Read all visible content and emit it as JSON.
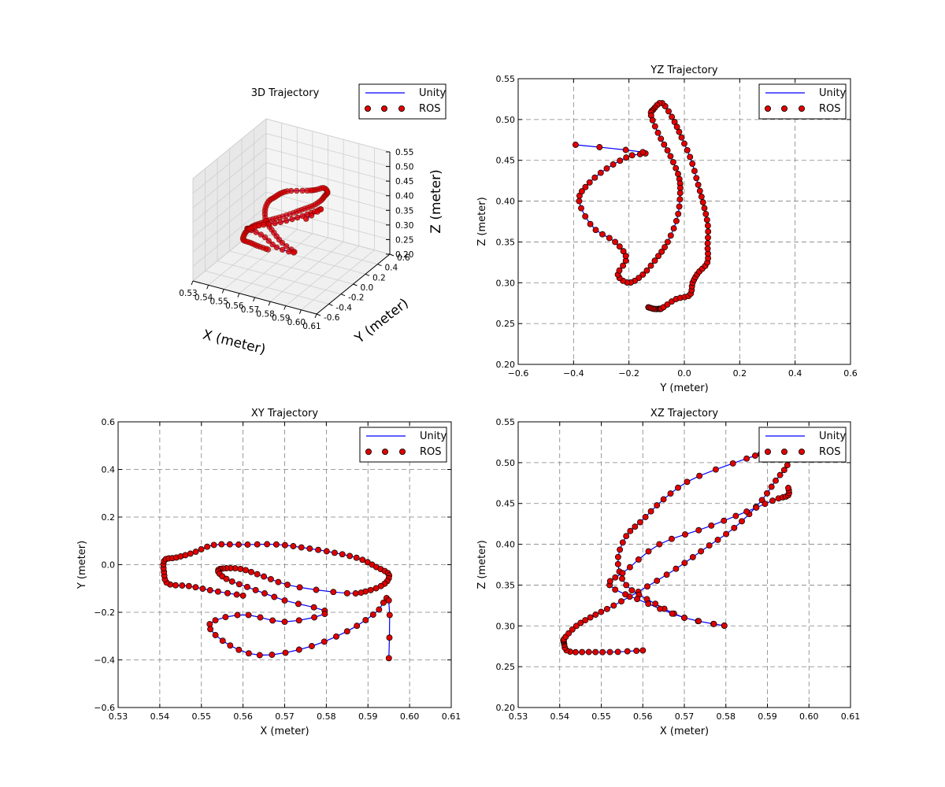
{
  "figure": {
    "background": "#ffffff"
  },
  "style": {
    "unity_color": "#0000ff",
    "ros_fill": "#e00000",
    "ros_edge": "#000000",
    "grid_color": "#808080",
    "pane_color": "#f2f2f2"
  },
  "legend": {
    "unity_label": "Unity",
    "ros_label": "ROS",
    "placement": "top-right"
  },
  "chart_data": [
    {
      "id": "traj3d",
      "type": "line",
      "projection": "3d",
      "title": "3D Trajectory",
      "xlabel": "X (meter)",
      "ylabel": "Y (meter)",
      "zlabel": "Z (meter)",
      "xlim": [
        0.53,
        0.61
      ],
      "ylim": [
        -0.6,
        0.6
      ],
      "zlim": [
        0.2,
        0.55
      ],
      "xticks": [
        "0.53",
        "0.54",
        "0.55",
        "0.56",
        "0.57",
        "0.58",
        "0.59",
        "0.60",
        "0.61"
      ],
      "yticks": [
        "-0.6",
        "-0.4",
        "-0.2",
        "0.0",
        "0.2",
        "0.4",
        "0.6"
      ],
      "zticks": [
        "0.20",
        "0.25",
        "0.30",
        "0.35",
        "0.40",
        "0.45",
        "0.50",
        "0.55"
      ],
      "grid": true,
      "legend": "top-right",
      "series": [
        {
          "name": "Unity",
          "style": "line"
        },
        {
          "name": "ROS",
          "style": "markers"
        }
      ]
    },
    {
      "id": "yz",
      "type": "line",
      "title": "YZ Trajectory",
      "xlabel": "Y (meter)",
      "ylabel": "Z (meter)",
      "xlim": [
        -0.6,
        0.6
      ],
      "ylim": [
        0.2,
        0.55
      ],
      "xticks": [
        "−0.6",
        "−0.4",
        "−0.2",
        "0.0",
        "0.2",
        "0.4",
        "0.6"
      ],
      "yticks": [
        "0.20",
        "0.25",
        "0.30",
        "0.35",
        "0.40",
        "0.45",
        "0.50",
        "0.55"
      ],
      "grid": true,
      "legend": "top-right",
      "series": [
        {
          "name": "Unity",
          "style": "line"
        },
        {
          "name": "ROS",
          "style": "markers"
        }
      ]
    },
    {
      "id": "xy",
      "type": "line",
      "title": "XY Trajectory",
      "xlabel": "X (meter)",
      "ylabel": "Y (meter)",
      "xlim": [
        0.53,
        0.61
      ],
      "ylim": [
        -0.6,
        0.6
      ],
      "xticks": [
        "0.53",
        "0.54",
        "0.55",
        "0.56",
        "0.57",
        "0.58",
        "0.59",
        "0.60",
        "0.61"
      ],
      "yticks": [
        "−0.6",
        "−0.4",
        "−0.2",
        "0.0",
        "0.2",
        "0.4",
        "0.6"
      ],
      "grid": true,
      "legend": "top-right",
      "series": [
        {
          "name": "Unity",
          "style": "line"
        },
        {
          "name": "ROS",
          "style": "markers"
        }
      ]
    },
    {
      "id": "xz",
      "type": "line",
      "title": "XZ Trajectory",
      "xlabel": "X (meter)",
      "ylabel": "Z (meter)",
      "xlim": [
        0.53,
        0.61
      ],
      "ylim": [
        0.2,
        0.55
      ],
      "xticks": [
        "0.53",
        "0.54",
        "0.55",
        "0.56",
        "0.57",
        "0.58",
        "0.59",
        "0.60",
        "0.61"
      ],
      "yticks": [
        "0.20",
        "0.25",
        "0.30",
        "0.35",
        "0.40",
        "0.45",
        "0.50",
        "0.55"
      ],
      "grid": true,
      "legend": "top-right",
      "series": [
        {
          "name": "Unity",
          "style": "line"
        },
        {
          "name": "ROS",
          "style": "markers"
        }
      ]
    }
  ],
  "trajectory": {
    "description_units": "meter",
    "points": [
      [
        0.56,
        -0.13,
        0.27
      ],
      [
        0.553,
        -0.11,
        0.268
      ],
      [
        0.547,
        -0.09,
        0.268
      ],
      [
        0.542,
        -0.08,
        0.269
      ],
      [
        0.541,
        -0.03,
        0.28
      ],
      [
        0.5412,
        0.02,
        0.285
      ],
      [
        0.544,
        0.03,
        0.3
      ],
      [
        0.548,
        0.05,
        0.312
      ],
      [
        0.553,
        0.083,
        0.325
      ],
      [
        0.56,
        0.084,
        0.345
      ],
      [
        0.568,
        0.085,
        0.37
      ],
      [
        0.575,
        0.07,
        0.395
      ],
      [
        0.582,
        0.05,
        0.42
      ],
      [
        0.588,
        0.025,
        0.45
      ],
      [
        0.592,
        -0.01,
        0.478
      ],
      [
        0.595,
        -0.04,
        0.5
      ],
      [
        0.594,
        -0.08,
        0.52
      ],
      [
        0.59,
        -0.11,
        0.513
      ],
      [
        0.585,
        -0.12,
        0.505
      ],
      [
        0.572,
        -0.09,
        0.48
      ],
      [
        0.565,
        -0.05,
        0.455
      ],
      [
        0.56,
        -0.02,
        0.43
      ],
      [
        0.556,
        -0.015,
        0.41
      ],
      [
        0.554,
        -0.025,
        0.38
      ],
      [
        0.556,
        -0.06,
        0.35
      ],
      [
        0.562,
        -0.1,
        0.33
      ],
      [
        0.57,
        -0.15,
        0.31
      ],
      [
        0.58,
        -0.2,
        0.3
      ],
      [
        0.57,
        -0.24,
        0.31
      ],
      [
        0.56,
        -0.21,
        0.33
      ],
      [
        0.552,
        -0.25,
        0.35
      ],
      [
        0.556,
        -0.33,
        0.368
      ],
      [
        0.564,
        -0.38,
        0.4
      ],
      [
        0.575,
        -0.35,
        0.42
      ],
      [
        0.585,
        -0.28,
        0.44
      ],
      [
        0.592,
        -0.2,
        0.455
      ],
      [
        0.595,
        -0.15,
        0.46
      ],
      [
        0.595,
        -0.42,
        0.47
      ]
    ]
  }
}
